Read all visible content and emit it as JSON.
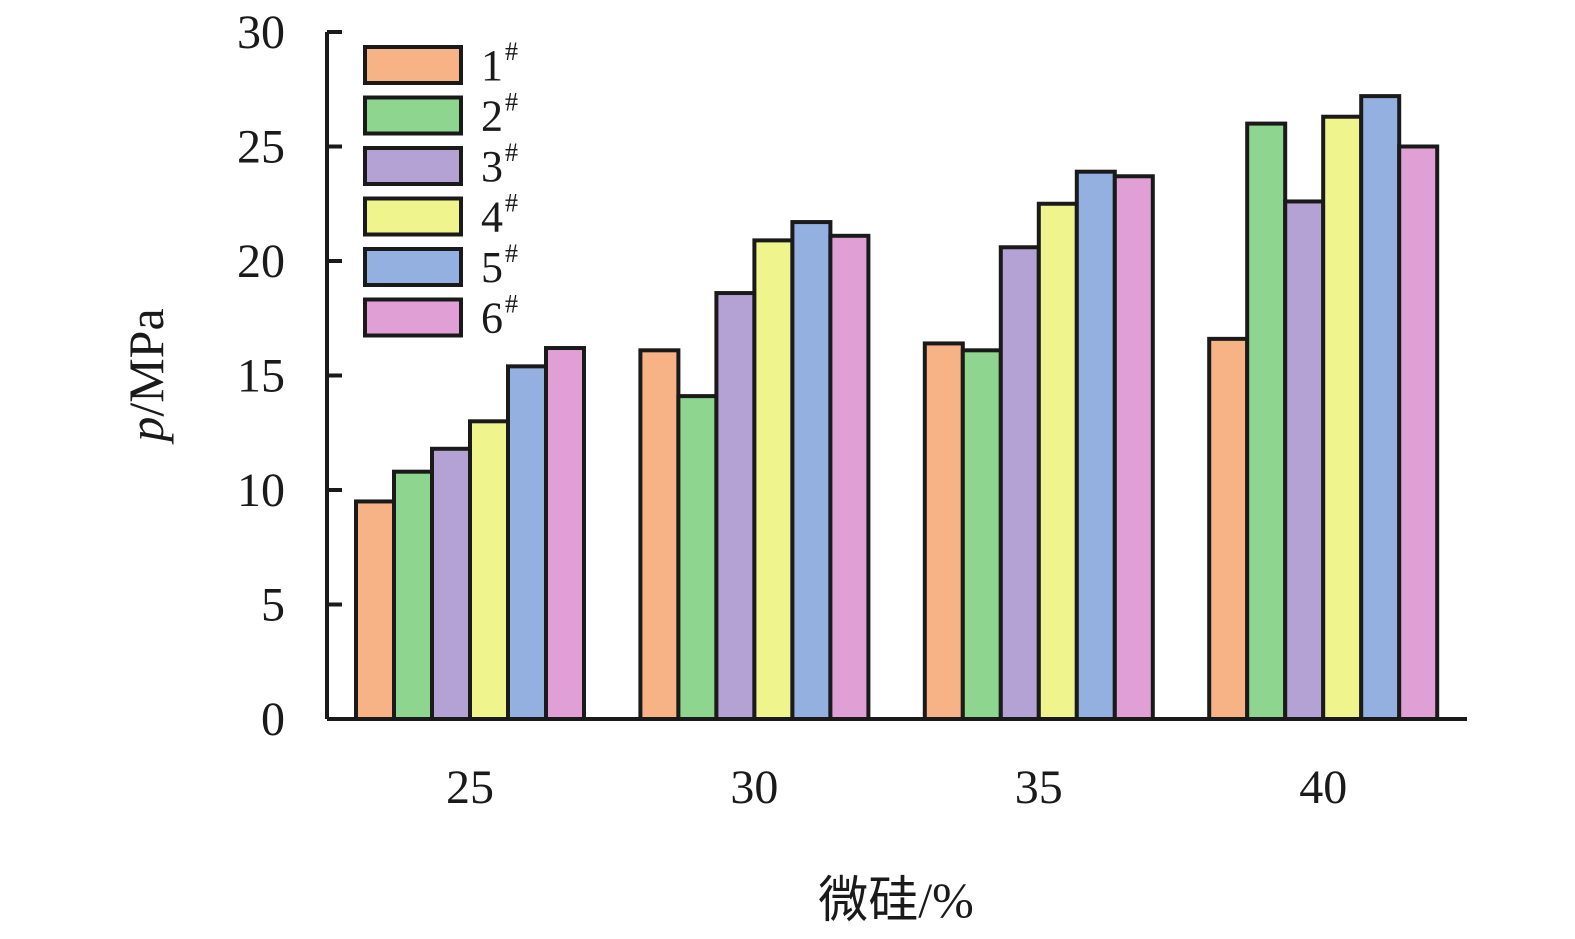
{
  "chart_data": {
    "type": "bar",
    "categories": [
      "25",
      "30",
      "35",
      "40"
    ],
    "series": [
      {
        "name": "1",
        "color": "#F7B386",
        "values": [
          9.5,
          16.1,
          16.4,
          16.6
        ]
      },
      {
        "name": "2",
        "color": "#8ED68F",
        "values": [
          10.8,
          14.1,
          16.1,
          26.0
        ]
      },
      {
        "name": "3",
        "color": "#B5A2D4",
        "values": [
          11.8,
          18.6,
          20.6,
          22.6
        ]
      },
      {
        "name": "4",
        "color": "#EFF58C",
        "values": [
          13.0,
          20.9,
          22.5,
          26.3
        ]
      },
      {
        "name": "5",
        "color": "#93B0E1",
        "values": [
          15.4,
          21.7,
          23.9,
          27.2
        ]
      },
      {
        "name": "6",
        "color": "#E1A0D5",
        "values": [
          16.2,
          21.1,
          23.7,
          25.0
        ]
      }
    ],
    "legend_suffix": "#",
    "legend_position": "top-left",
    "xlabel": "微硅/%",
    "ylabel_italic": "p",
    "ylabel_rest": "/MPa",
    "ylim": [
      0,
      30
    ],
    "yticks": [
      0,
      5,
      10,
      15,
      20,
      25,
      30
    ],
    "grid": false
  }
}
